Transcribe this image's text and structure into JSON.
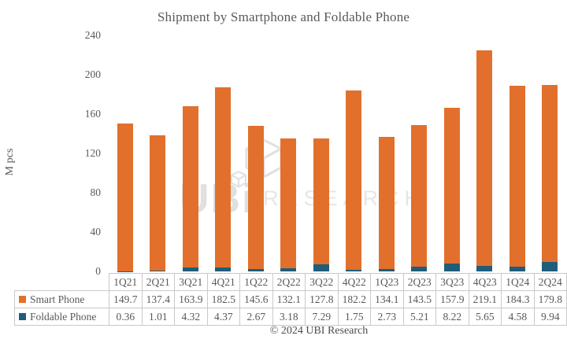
{
  "chart_data": {
    "type": "bar",
    "stacked": true,
    "title": "Shipment by Smartphone and Foldable Phone",
    "xlabel": "",
    "ylabel": "M pcs",
    "ylim": [
      0,
      240
    ],
    "ytick_labels": [
      "240",
      "200",
      "160",
      "120",
      "80",
      "40",
      "0"
    ],
    "grid": false,
    "legend_position": "table-left",
    "categories": [
      "1Q21",
      "2Q21",
      "3Q21",
      "4Q21",
      "1Q22",
      "2Q22",
      "3Q22",
      "4Q22",
      "1Q23",
      "2Q23",
      "3Q23",
      "4Q23",
      "1Q24",
      "2Q24"
    ],
    "series": [
      {
        "name": "Smart Phone",
        "color": "#e2702c",
        "stack_position": "top",
        "values": [
          149.7,
          137.4,
          163.9,
          182.5,
          145.6,
          132.1,
          127.8,
          182.2,
          134.1,
          143.5,
          157.9,
          219.1,
          184.3,
          179.8
        ]
      },
      {
        "name": "Foldable Phone",
        "color": "#1f5d7a",
        "stack_position": "bottom",
        "values": [
          0.36,
          1.01,
          4.32,
          4.37,
          2.67,
          3.18,
          7.29,
          1.75,
          2.73,
          5.21,
          8.22,
          5.65,
          4.58,
          9.94
        ]
      }
    ]
  },
  "watermark": {
    "logo_text": "UBi",
    "brand_text": "RESEARCH"
  },
  "footer": {
    "copyright": "© 2024 UBI Research"
  }
}
